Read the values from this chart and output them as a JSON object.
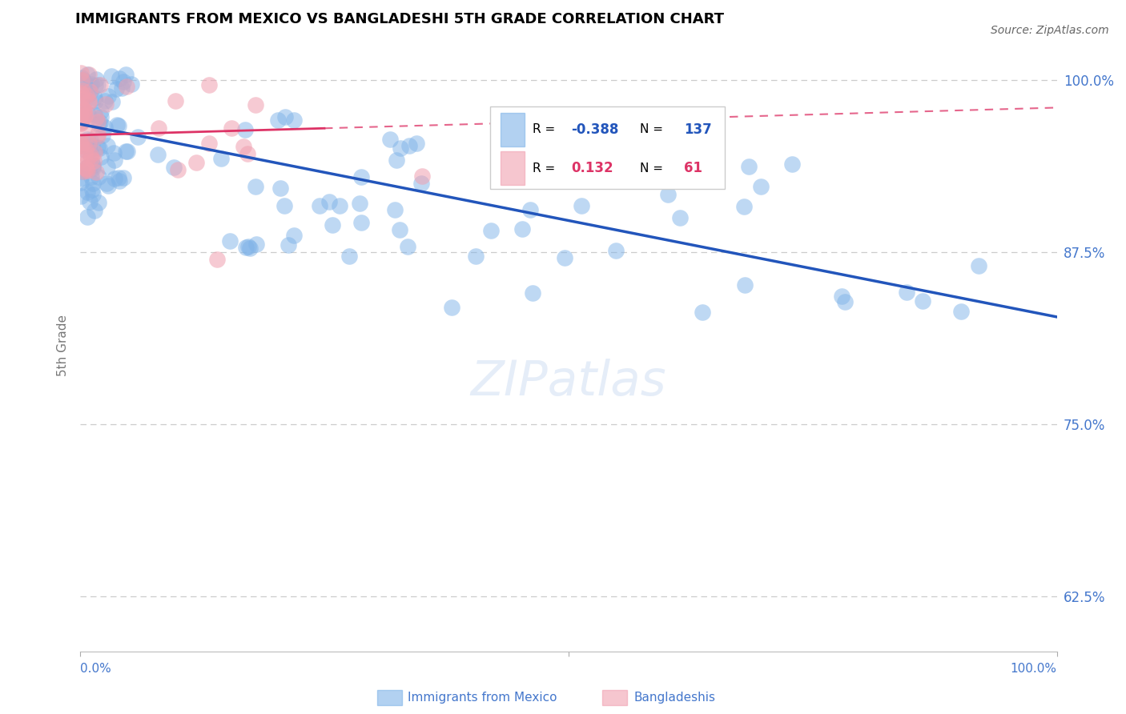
{
  "title": "IMMIGRANTS FROM MEXICO VS BANGLADESHI 5TH GRADE CORRELATION CHART",
  "source": "Source: ZipAtlas.com",
  "ylabel": "5th Grade",
  "blue_R": -0.388,
  "blue_N": 137,
  "pink_R": 0.132,
  "pink_N": 61,
  "blue_label": "Immigrants from Mexico",
  "pink_label": "Bangladeshis",
  "ytick_labels": [
    "100.0%",
    "87.5%",
    "75.0%",
    "62.5%"
  ],
  "ytick_values": [
    1.0,
    0.875,
    0.75,
    0.625
  ],
  "xlim": [
    0.0,
    1.0
  ],
  "ylim": [
    0.585,
    1.03
  ],
  "blue_color": "#7fb3e8",
  "pink_color": "#f0a0b0",
  "blue_line_color": "#2255bb",
  "pink_line_color": "#dd3366",
  "blue_line_y0": 0.968,
  "blue_line_y1": 0.828,
  "pink_line_y0": 0.96,
  "pink_line_y1": 0.98,
  "title_fontsize": 13,
  "source_fontsize": 10,
  "axis_label_color": "#4477cc",
  "grid_color": "#cccccc",
  "watermark": "ZIPatlas"
}
